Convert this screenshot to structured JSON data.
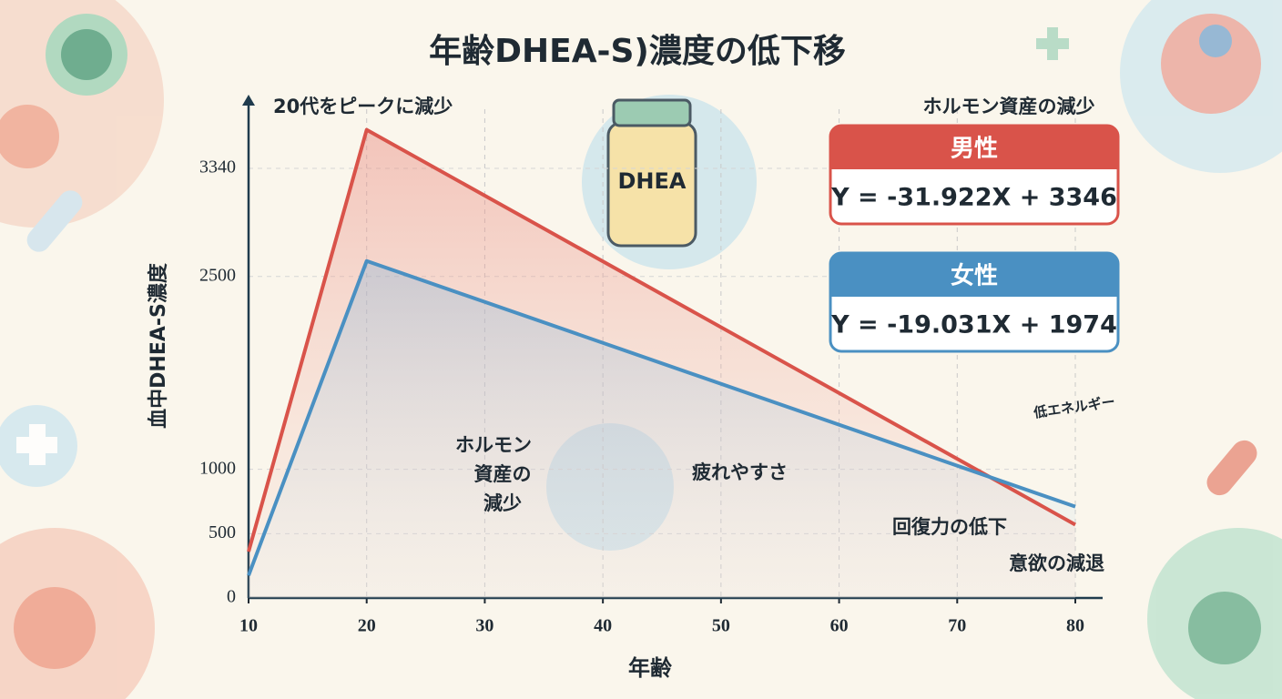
{
  "chart_data": {
    "type": "line",
    "title": "年齢DHEA-S)濃度の低下移",
    "x_label": "年齢",
    "y_label": "血中DHEA-S濃度",
    "x": [
      10,
      20,
      80
    ],
    "xlim": [
      10,
      80
    ],
    "xticks": [
      10,
      20,
      30,
      40,
      50,
      60,
      70,
      80
    ],
    "ylim": [
      0,
      3800
    ],
    "yticks": [
      0,
      500,
      1000,
      2500,
      3340
    ],
    "grid": true,
    "legend_title": "ホルモン資産の減少",
    "series": [
      {
        "name": "男性",
        "color": "#d9534a",
        "values": [
          360,
          3640,
          570
        ],
        "equation": "Y = -31.922X + 3346"
      },
      {
        "name": "女性",
        "color": "#4a90c2",
        "values": [
          175,
          2620,
          710
        ],
        "equation": "Y = -19.031X + 1974"
      }
    ],
    "annotations": {
      "peak": "20代をピークに減少",
      "bottle": "DHEA",
      "hormone": [
        "ホルモン",
        "資産の",
        "減少"
      ],
      "fatigue": "疲れやすさ",
      "low_energy": "低エネルギー",
      "recovery": "回復力の低下",
      "motivation": "意欲の減退"
    }
  }
}
